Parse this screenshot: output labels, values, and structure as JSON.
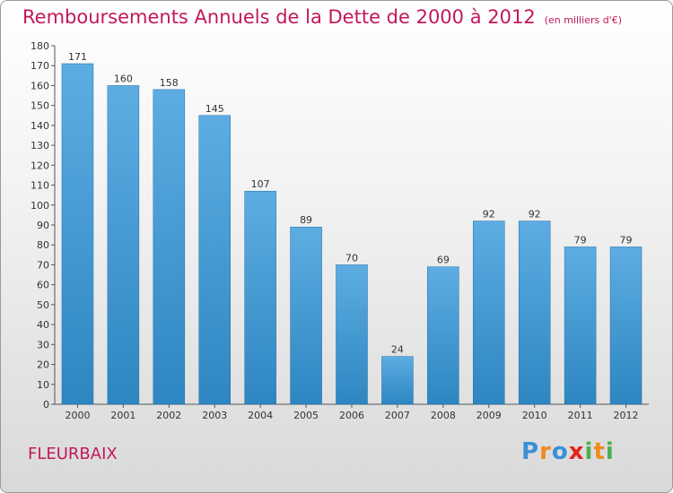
{
  "chart_data": {
    "type": "bar",
    "title": "Remboursements Annuels de la Dette de 2000 à 2012",
    "unit_label": "(en milliers d'€)",
    "categories": [
      "2000",
      "2001",
      "2002",
      "2003",
      "2004",
      "2005",
      "2006",
      "2007",
      "2008",
      "2009",
      "2010",
      "2011",
      "2012"
    ],
    "values": [
      171,
      160,
      158,
      145,
      107,
      89,
      70,
      24,
      69,
      92,
      92,
      79,
      79
    ],
    "ylim": [
      0,
      180
    ],
    "yticks": [
      0,
      10,
      20,
      30,
      40,
      50,
      60,
      70,
      80,
      90,
      100,
      110,
      120,
      130,
      140,
      150,
      160,
      170,
      180
    ],
    "grid": false,
    "bar_color_top": "#5dade2",
    "bar_color_bottom": "#2e86c1"
  },
  "footer": {
    "commune": "FLEURBAIX",
    "logo": "Proxiti"
  }
}
